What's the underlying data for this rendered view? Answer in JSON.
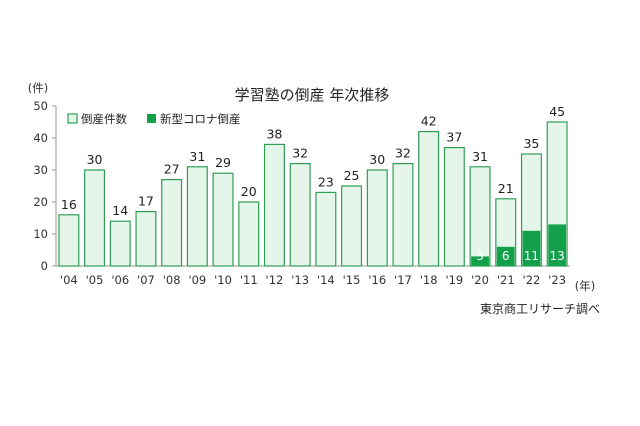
{
  "chart_data": {
    "type": "bar",
    "title": "学習塾の倒産 年次推移",
    "y_unit": "(件)",
    "x_unit": "(年)",
    "source": "東京商工リサーチ調べ",
    "ylim": [
      0,
      50
    ],
    "yticks": [
      0,
      10,
      20,
      30,
      40,
      50
    ],
    "grid": false,
    "legend_position": "top-left",
    "categories": [
      "'04",
      "'05",
      "'06",
      "'07",
      "'08",
      "'09",
      "'10",
      "'11",
      "'12",
      "'13",
      "'14",
      "'15",
      "'16",
      "'17",
      "'18",
      "'19",
      "'20",
      "'21",
      "'22",
      "'23"
    ],
    "series": [
      {
        "name": "倒産件数",
        "color": "#e6f5ea",
        "border": "#2f9e55",
        "values": [
          16,
          30,
          14,
          17,
          27,
          31,
          29,
          20,
          38,
          32,
          23,
          25,
          30,
          32,
          42,
          37,
          31,
          21,
          35,
          45
        ]
      },
      {
        "name": "新型コロナ倒産",
        "color": "#12a14a",
        "values": [
          null,
          null,
          null,
          null,
          null,
          null,
          null,
          null,
          null,
          null,
          null,
          null,
          null,
          null,
          null,
          null,
          3,
          6,
          11,
          13
        ]
      }
    ]
  }
}
